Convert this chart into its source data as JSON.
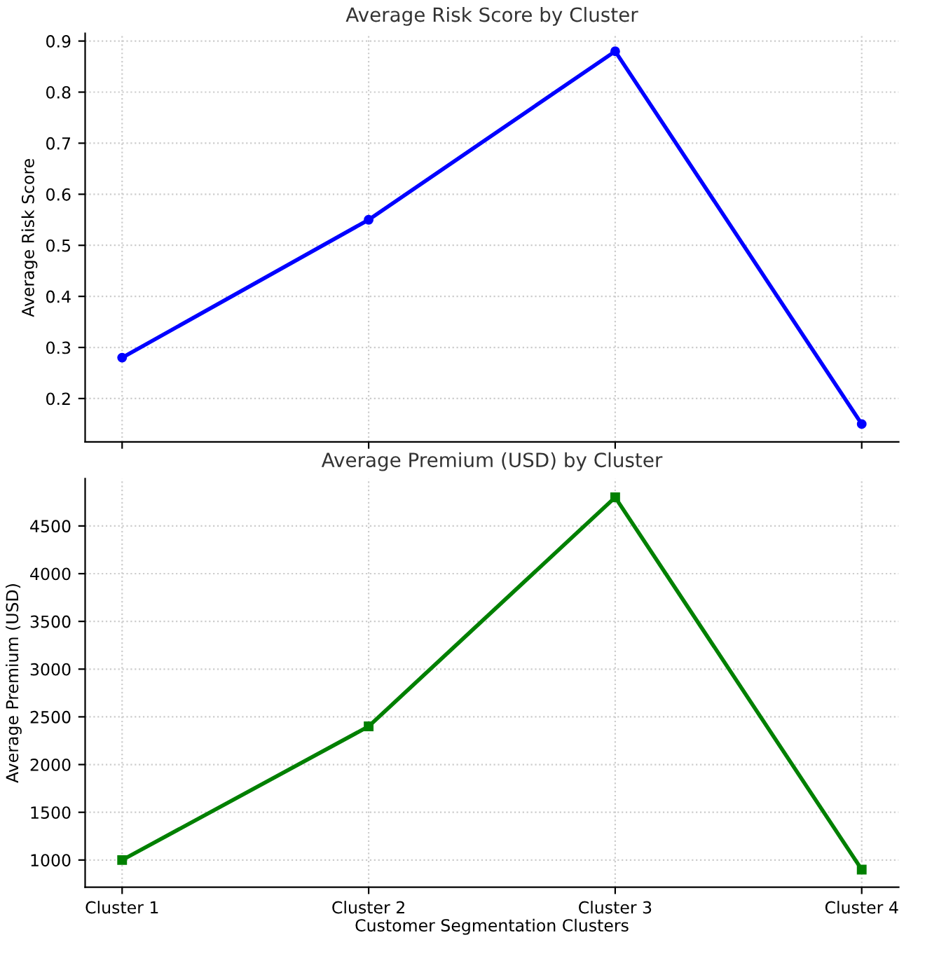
{
  "chart_data": [
    {
      "type": "line",
      "title": "Average Risk Score by Cluster",
      "ylabel": "Average Risk Score",
      "categories": [
        null,
        null,
        null,
        null
      ],
      "series": [
        {
          "color": "#0000ff",
          "values": [
            0.28,
            0.55,
            0.88,
            0.15
          ]
        }
      ],
      "ylim": [
        0.115,
        0.915
      ],
      "yticks": [
        0.2,
        0.3,
        0.4,
        0.5,
        0.6,
        0.7,
        0.8,
        0.9
      ],
      "grid": true,
      "marker": "circle",
      "line_style": "solid",
      "tick_labels": "y"
    },
    {
      "type": "line",
      "title": "Average Premium (USD) by Cluster",
      "xlabel": "Customer Segmentation Clusters",
      "ylabel": "Average Premium (USD)",
      "categories": [
        "Cluster 1",
        "Cluster 2",
        "Cluster 3",
        "Cluster 4"
      ],
      "series": [
        {
          "color": "#008000",
          "values": [
            1000,
            2400,
            4800,
            900
          ]
        }
      ],
      "ylim": [
        715,
        4995
      ],
      "yticks": [
        1000,
        1500,
        2000,
        2500,
        3000,
        3500,
        4000,
        4500
      ],
      "grid": true,
      "marker": "square",
      "line_style": "solid"
    }
  ]
}
